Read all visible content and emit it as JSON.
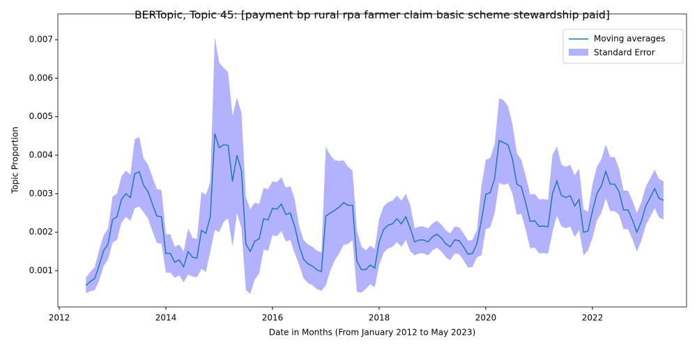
{
  "chart_data": {
    "type": "line",
    "title": "BERTopic, Topic 45: [payment bp rural rpa farmer claim basic scheme stewardship paid]",
    "x_label": "Date in Months (From January 2012 to May 2023)",
    "y_label": "Topic Proportion",
    "xlim": [
      2011.974,
      2023.765
    ],
    "xticks": [
      2012,
      2014,
      2016,
      2018,
      2020,
      2022
    ],
    "ylim": [
      6e-05,
      0.00767
    ],
    "yticks": [
      0.001,
      0.002,
      0.003,
      0.004,
      0.005,
      0.006,
      0.007
    ],
    "legend": "upper right",
    "x": [
      2012.5,
      2012.583,
      2012.667,
      2012.75,
      2012.833,
      2012.917,
      2013,
      2013.083,
      2013.167,
      2013.25,
      2013.333,
      2013.417,
      2013.5,
      2013.583,
      2013.667,
      2013.75,
      2013.833,
      2013.917,
      2014,
      2014.083,
      2014.167,
      2014.25,
      2014.333,
      2014.417,
      2014.5,
      2014.583,
      2014.667,
      2014.75,
      2014.833,
      2014.917,
      2015,
      2015.083,
      2015.167,
      2015.25,
      2015.333,
      2015.417,
      2015.5,
      2015.583,
      2015.667,
      2015.75,
      2015.833,
      2015.917,
      2016,
      2016.083,
      2016.167,
      2016.25,
      2016.333,
      2016.417,
      2016.5,
      2016.583,
      2016.667,
      2016.75,
      2016.833,
      2016.917,
      2017,
      2017.083,
      2017.167,
      2017.25,
      2017.333,
      2017.417,
      2017.5,
      2017.583,
      2017.667,
      2017.75,
      2017.833,
      2017.917,
      2018,
      2018.083,
      2018.167,
      2018.25,
      2018.333,
      2018.417,
      2018.5,
      2018.583,
      2018.667,
      2018.75,
      2018.833,
      2018.917,
      2019,
      2019.083,
      2019.167,
      2019.25,
      2019.333,
      2019.417,
      2019.5,
      2019.583,
      2019.667,
      2019.75,
      2019.833,
      2019.917,
      2020,
      2020.083,
      2020.167,
      2020.25,
      2020.333,
      2020.417,
      2020.5,
      2020.583,
      2020.667,
      2020.75,
      2020.833,
      2020.917,
      2021,
      2021.083,
      2021.167,
      2021.25,
      2021.333,
      2021.417,
      2021.5,
      2021.583,
      2021.667,
      2021.75,
      2021.833,
      2021.917,
      2022,
      2022.083,
      2022.167,
      2022.25,
      2022.333,
      2022.417,
      2022.5,
      2022.583,
      2022.667,
      2022.75,
      2022.833,
      2022.917,
      2023,
      2023.083,
      2023.167,
      2023.25,
      2023.333
    ],
    "series": [
      {
        "name": "Moving averages",
        "color": "#1f77b4",
        "values": [
          0.00062,
          0.00072,
          0.0008,
          0.00115,
          0.00152,
          0.0017,
          0.00233,
          0.0024,
          0.00285,
          0.003,
          0.0029,
          0.00352,
          0.00357,
          0.00322,
          0.00305,
          0.00272,
          0.00242,
          0.0024,
          0.00145,
          0.00145,
          0.00122,
          0.00128,
          0.0011,
          0.0015,
          0.00135,
          0.00133,
          0.00205,
          0.00197,
          0.0024,
          0.00456,
          0.0042,
          0.00427,
          0.00426,
          0.00332,
          0.004,
          0.0036,
          0.0017,
          0.0015,
          0.00177,
          0.00183,
          0.00235,
          0.00232,
          0.00262,
          0.0026,
          0.00273,
          0.00246,
          0.0025,
          0.00215,
          0.00165,
          0.0013,
          0.00118,
          0.00112,
          0.00102,
          0.00098,
          0.00242,
          0.0025,
          0.00257,
          0.00265,
          0.00277,
          0.0027,
          0.0027,
          0.00125,
          0.00103,
          0.00103,
          0.00115,
          0.00107,
          0.00175,
          0.00207,
          0.00218,
          0.00222,
          0.00235,
          0.00222,
          0.0024,
          0.0021,
          0.00175,
          0.0018,
          0.0018,
          0.00175,
          0.00188,
          0.00195,
          0.00185,
          0.0017,
          0.00162,
          0.0018,
          0.00178,
          0.00162,
          0.00143,
          0.00145,
          0.0017,
          0.0023,
          0.00298,
          0.00303,
          0.0034,
          0.00438,
          0.00433,
          0.00427,
          0.0039,
          0.00325,
          0.00318,
          0.00275,
          0.00228,
          0.0023,
          0.00215,
          0.00216,
          0.00214,
          0.003,
          0.00333,
          0.00296,
          0.0029,
          0.00295,
          0.00268,
          0.00285,
          0.002,
          0.00203,
          0.00255,
          0.003,
          0.0032,
          0.00358,
          0.00325,
          0.00325,
          0.00305,
          0.00258,
          0.00258,
          0.00232,
          0.002,
          0.00228,
          0.00268,
          0.0029,
          0.00313,
          0.00288,
          0.00283
        ]
      }
    ],
    "band": {
      "name": "Standard Error",
      "color": "#0000ff",
      "opacity": 0.3,
      "errors": [
        0.0002,
        0.00025,
        0.0003,
        0.0004,
        0.0004,
        0.0004,
        0.0006,
        0.0006,
        0.0006,
        0.0006,
        0.0006,
        0.0009,
        0.0009,
        0.0007,
        0.0007,
        0.0007,
        0.0007,
        0.0007,
        0.0005,
        0.0005,
        0.0004,
        0.0004,
        0.0004,
        0.0006,
        0.0005,
        0.0005,
        0.001,
        0.001,
        0.0009,
        0.0025,
        0.0022,
        0.002,
        0.0019,
        0.0017,
        0.0015,
        0.0015,
        0.0012,
        0.0011,
        0.001,
        0.0009,
        0.0008,
        0.0008,
        0.0007,
        0.0007,
        0.0007,
        0.0007,
        0.0007,
        0.0007,
        0.0005,
        0.0005,
        0.0005,
        0.0005,
        0.0005,
        0.0005,
        0.0018,
        0.0015,
        0.0013,
        0.0012,
        0.0011,
        0.001,
        0.0009,
        0.0008,
        0.0006,
        0.0005,
        0.0005,
        0.0005,
        0.0006,
        0.0006,
        0.0006,
        0.0006,
        0.0006,
        0.0006,
        0.0006,
        0.0006,
        0.00035,
        0.00035,
        0.00035,
        0.00035,
        0.00035,
        0.00035,
        0.00035,
        0.00035,
        0.00035,
        0.00035,
        0.00035,
        0.00035,
        0.00035,
        0.00035,
        0.00035,
        0.0009,
        0.0009,
        0.0009,
        0.0009,
        0.0011,
        0.0011,
        0.001,
        0.0009,
        0.0008,
        0.0007,
        0.0007,
        0.0007,
        0.0007,
        0.0007,
        0.0007,
        0.0007,
        0.001,
        0.0009,
        0.0008,
        0.0008,
        0.0008,
        0.0008,
        0.0008,
        0.0006,
        0.0005,
        0.0007,
        0.0007,
        0.0007,
        0.0007,
        0.0007,
        0.0007,
        0.0006,
        0.0005,
        0.0005,
        0.0005,
        0.0005,
        0.0005,
        0.0005,
        0.0005,
        0.0005,
        0.0005,
        0.0005
      ]
    }
  }
}
